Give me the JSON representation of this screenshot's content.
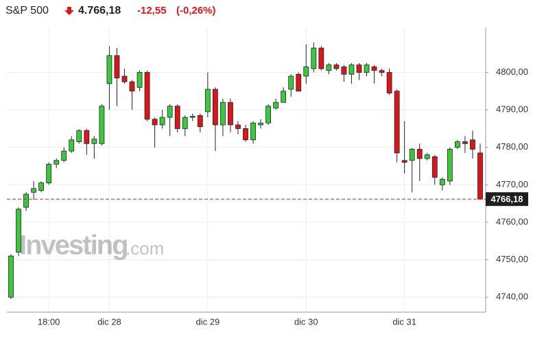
{
  "header": {
    "name": "S&P 500",
    "price": "4.766,18",
    "change": "-12,55",
    "change_pct": "(-0,26%)"
  },
  "watermark": {
    "brand": "Investing",
    "suffix": ".com"
  },
  "chart_data": {
    "type": "candlestick",
    "categories": [
      null,
      null,
      null,
      null,
      null,
      "18:00",
      null,
      null,
      null,
      null,
      null,
      null,
      null,
      "dic 28",
      null,
      null,
      null,
      null,
      null,
      null,
      null,
      null,
      null,
      null,
      null,
      null,
      "dic 29",
      null,
      null,
      null,
      null,
      null,
      null,
      null,
      null,
      null,
      null,
      null,
      null,
      "dic 30",
      null,
      null,
      null,
      null,
      null,
      null,
      null,
      null,
      null,
      null,
      null,
      null,
      "dic 31",
      null,
      null,
      null,
      null,
      null,
      null,
      null,
      null,
      null,
      null
    ],
    "open": [
      4740,
      4752,
      4764,
      4768,
      4768.5,
      4770.5,
      4775.5,
      4776.5,
      4779,
      4781.5,
      4784.5,
      4781,
      4781,
      4797,
      4804.5,
      4799,
      4797.5,
      4796,
      4800,
      4787.5,
      4786,
      4788,
      4791,
      4785,
      4788,
      4788.5,
      4789.5,
      4795.5,
      4786,
      4792,
      4786,
      4785,
      4782,
      4786,
      4786.5,
      4790.5,
      4792,
      4795.5,
      4799.5,
      4799,
      4801,
      4806.5,
      4800.5,
      4802,
      4801.5,
      4799.5,
      4802,
      4800,
      4801.5,
      4800.5,
      4800,
      4795,
      4776.5,
      4776.5,
      4779.5,
      4777,
      4777.5,
      4770,
      4771,
      4780,
      4781.5,
      4782,
      4778.5
    ],
    "high": [
      4751.5,
      4764,
      4768,
      4771,
      4771,
      4776,
      4777,
      4780,
      4783,
      4784.8,
      4785,
      4783,
      4791.5,
      4807,
      4806.5,
      4801,
      4798,
      4800.5,
      4800.5,
      4788,
      4790,
      4791.5,
      4791.5,
      4788.5,
      4789,
      4789,
      4800,
      4796,
      4793,
      4793,
      4787,
      4786,
      4787,
      4787.5,
      4791.5,
      4793,
      4796,
      4799.5,
      4800,
      4807.5,
      4808,
      4807,
      4802.5,
      4802.5,
      4802,
      4802.5,
      4802.5,
      4802.5,
      4802,
      4801,
      4801,
      4795.5,
      4787,
      4779.8,
      4781,
      4778.5,
      4778,
      4772,
      4780,
      4782,
      4783,
      4784.5,
      4781
    ],
    "low": [
      4739.5,
      4751,
      4763,
      4766,
      4768,
      4770,
      4774.5,
      4776,
      4778.5,
      4781,
      4778,
      4777,
      4780.5,
      4790,
      4791,
      4797,
      4790,
      4795,
      4787,
      4780,
      4785,
      4783,
      4784,
      4783,
      4787,
      4784,
      4788,
      4779,
      4783,
      4784,
      4783.5,
      4781.5,
      4781,
      4785,
      4786,
      4790,
      4792,
      4793.5,
      4795,
      4797,
      4800,
      4800.5,
      4799.5,
      4800.5,
      4797.5,
      4797,
      4798,
      4799,
      4797,
      4799,
      4794,
      4776,
      4773,
      4768,
      4771,
      4776.5,
      4770,
      4768.5,
      4770,
      4779.5,
      4778.5,
      4777,
      4766
    ],
    "close": [
      4751,
      4763.5,
      4767.5,
      4769,
      4770.5,
      4775.5,
      4776.5,
      4779,
      4782,
      4784.5,
      4781,
      4782.2,
      4791,
      4804.5,
      4798.5,
      4797.5,
      4795,
      4800,
      4787.5,
      4786,
      4788,
      4791,
      4785,
      4788,
      4788.3,
      4785.5,
      4795.5,
      4786,
      4792,
      4786,
      4785,
      4782,
      4786.5,
      4786.5,
      4791,
      4792,
      4795,
      4799,
      4795,
      4801.5,
      4806.5,
      4801,
      4802,
      4801,
      4799.5,
      4802,
      4800,
      4802,
      4800.5,
      4800,
      4794.5,
      4778.5,
      4776,
      4779.5,
      4777,
      4778,
      4772,
      4771.5,
      4779.5,
      4781.5,
      4781,
      4779.5,
      4766.18
    ],
    "up_color": "#3cc83c",
    "down_color": "#d9161c",
    "last": {
      "value": 4766.18,
      "label": "4766,18"
    },
    "ylim": [
      4736,
      4812
    ],
    "yticks": [
      {
        "value": 4740,
        "label": "4740,00"
      },
      {
        "value": 4750,
        "label": "4750,00"
      },
      {
        "value": 4760,
        "label": "4760,00"
      },
      {
        "value": 4770,
        "label": "4770,00"
      },
      {
        "value": 4780,
        "label": "4780,00"
      },
      {
        "value": 4790,
        "label": "4790,00"
      },
      {
        "value": 4800,
        "label": "4800,00"
      }
    ],
    "grid": true
  }
}
